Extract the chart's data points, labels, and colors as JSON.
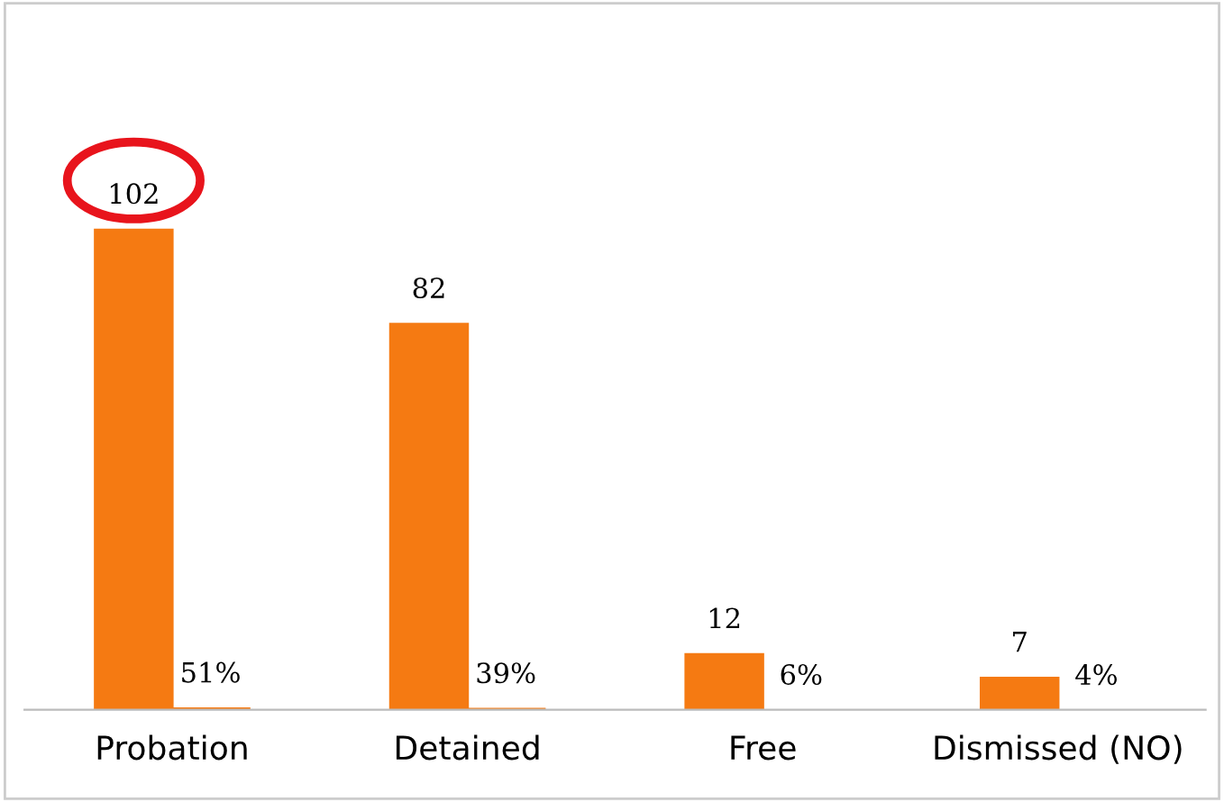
{
  "chart_data": {
    "type": "bar",
    "categories": [
      "Probation",
      "Detained",
      "Free",
      "Dismissed (NO)"
    ],
    "series": [
      {
        "color": "#f57a12",
        "values": [
          102,
          82,
          12,
          7
        ],
        "value_labels": [
          "102",
          "82",
          "12",
          "7"
        ]
      },
      {
        "color": "#f57a12",
        "values": [
          0.51,
          0.39,
          0.06,
          0.04
        ],
        "value_labels": [
          "51%",
          "39%",
          "6%",
          "4%"
        ]
      }
    ],
    "grid": false,
    "legend": false,
    "tick_labels": "x"
  }
}
